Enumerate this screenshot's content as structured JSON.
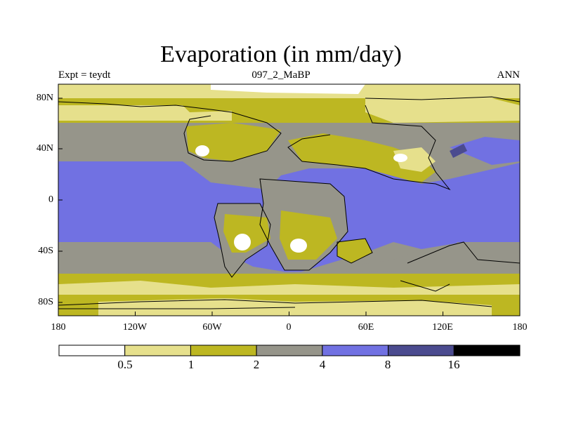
{
  "title": "Evaporation (in mm/day)",
  "subtitle_left": "Expt = teydt",
  "subtitle_center": "097_2_MaBP",
  "subtitle_right": "ANN",
  "lat_labels": [
    "80N",
    "40N",
    "0",
    "40S",
    "80S"
  ],
  "lon_labels": [
    "180",
    "120W",
    "60W",
    "0",
    "60E",
    "120E",
    "180"
  ],
  "colorbar": {
    "bins": [
      {
        "color": "#ffffff",
        "name": "below-0.5"
      },
      {
        "color": "#e6e08c",
        "name": "0.5-1"
      },
      {
        "color": "#bdb722",
        "name": "1-2"
      },
      {
        "color": "#96958a",
        "name": "2-4"
      },
      {
        "color": "#7171e2",
        "name": "4-8"
      },
      {
        "color": "#4b4b8f",
        "name": "8-16"
      },
      {
        "color": "#000000",
        "name": "above-16"
      }
    ],
    "labels": [
      "0.5",
      "1",
      "2",
      "4",
      "8",
      "16"
    ]
  }
}
